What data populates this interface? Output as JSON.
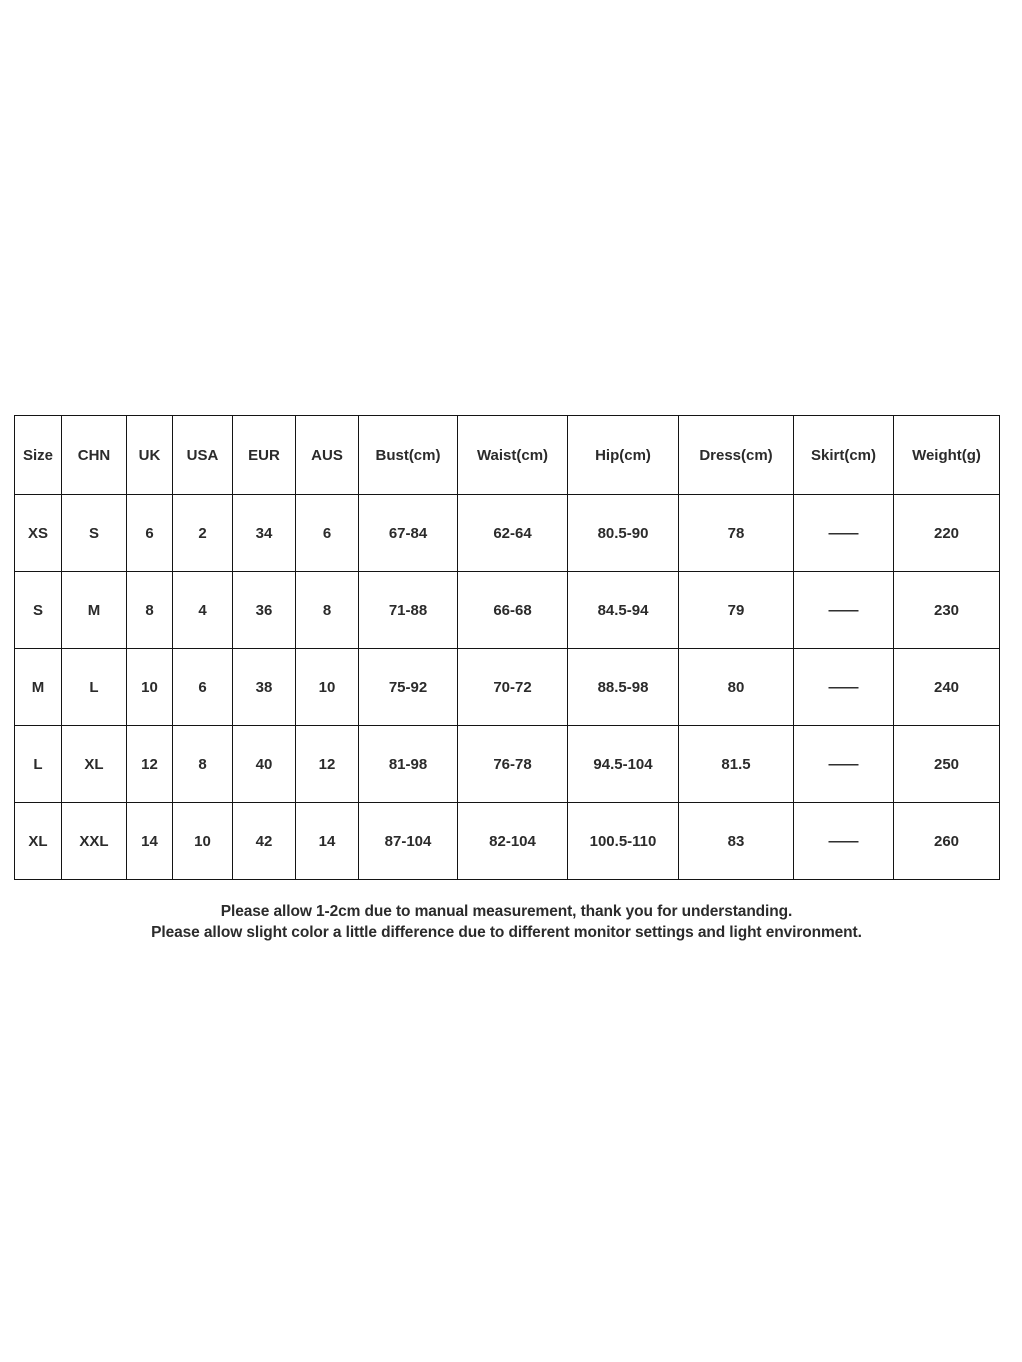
{
  "size_chart": {
    "columns": [
      "Size",
      "CHN",
      "UK",
      "USA",
      "EUR",
      "AUS",
      "Bust(cm)",
      "Waist(cm)",
      "Hip(cm)",
      "Dress(cm)",
      "Skirt(cm)",
      "Weight(g)"
    ],
    "rows": [
      [
        "XS",
        "S",
        "6",
        "2",
        "34",
        "6",
        "67-84",
        "62-64",
        "80.5-90",
        "78",
        "——",
        "220"
      ],
      [
        "S",
        "M",
        "8",
        "4",
        "36",
        "8",
        "71-88",
        "66-68",
        "84.5-94",
        "79",
        "——",
        "230"
      ],
      [
        "M",
        "L",
        "10",
        "6",
        "38",
        "10",
        "75-92",
        "70-72",
        "88.5-98",
        "80",
        "——",
        "240"
      ],
      [
        "L",
        "XL",
        "12",
        "8",
        "40",
        "12",
        "81-98",
        "76-78",
        "94.5-104",
        "81.5",
        "——",
        "250"
      ],
      [
        "XL",
        "XXL",
        "14",
        "10",
        "42",
        "14",
        "87-104",
        "82-104",
        "100.5-110",
        "83",
        "——",
        "260"
      ]
    ],
    "empty_value_dash": "——"
  },
  "notes": [
    "Please allow 1-2cm due to manual measurement, thank you for understanding.",
    "Please allow slight color a little difference due to different monitor settings and light environment."
  ],
  "colors": {
    "text": "#2b2b2b",
    "border": "#141414",
    "background": "#ffffff"
  }
}
